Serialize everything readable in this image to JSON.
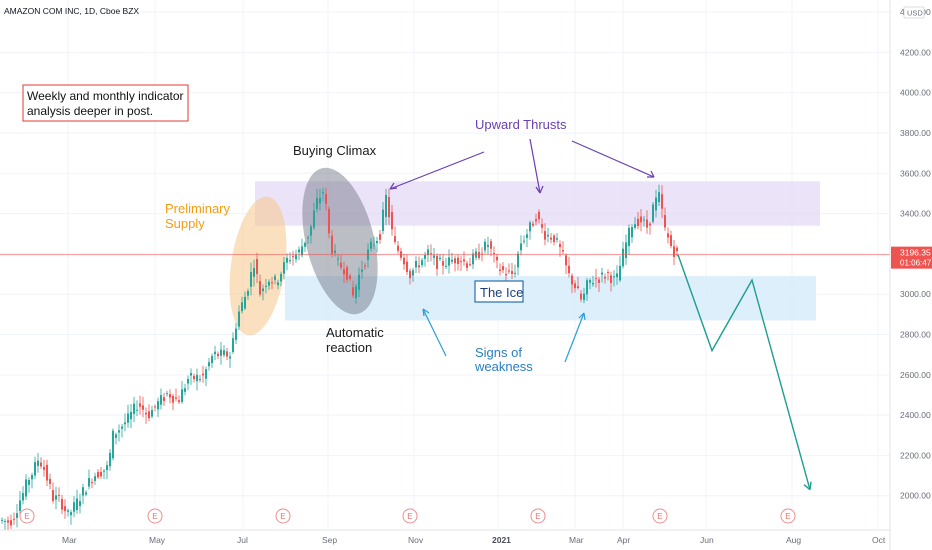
{
  "header": {
    "symbol": "AMAZON COM INC, 1D, Cboe BZX"
  },
  "currency": "USD",
  "price_label": {
    "price": "3196.35",
    "countdown": "01:06:47"
  },
  "note_box": {
    "line1": "Weekly and monthly indicator",
    "line2": "analysis deeper in post."
  },
  "annotations": {
    "buying_climax": "Buying Climax",
    "upward_thrusts": "Upward Thrusts",
    "preliminary_supply_1": "Preliminary",
    "preliminary_supply_2": "Supply",
    "automatic_reaction_1": "Automatic",
    "automatic_reaction_2": "reaction",
    "the_ice": "The Ice",
    "signs_of_weakness_1": "Signs of",
    "signs_of_weakness_2": "weakness"
  },
  "event_marker": "E",
  "colors": {
    "up": "#26a69a",
    "down": "#ef5350",
    "purple": "#6a3fb5",
    "blue": "#2a7fc0",
    "orange": "#f39c12",
    "projection": "#1e9e8e",
    "price_line": "#ef5350"
  },
  "chart_data": {
    "type": "candlestick",
    "title": "AMAZON COM INC, 1D, Cboe BZX",
    "y_axis": {
      "ticks": [
        2000,
        2200,
        2400,
        2600,
        2800,
        3000,
        3200,
        3400,
        3600,
        3800,
        4000,
        4200,
        4400
      ],
      "min": 1830,
      "max": 4440
    },
    "x_axis": {
      "labels": [
        "Mar",
        "May",
        "Jul",
        "Sep",
        "Nov",
        "2021",
        "Mar",
        "Apr",
        "Jun",
        "Aug",
        "Oct"
      ]
    },
    "last_price": 3196.35,
    "zones": [
      {
        "name": "Upward Thrusts zone",
        "from": 3340,
        "to": 3560
      },
      {
        "name": "The Ice zone",
        "from": 2870,
        "to": 3090
      }
    ],
    "trend_anchors": [
      [
        0,
        1880
      ],
      [
        12,
        1870
      ],
      [
        18,
        1920
      ],
      [
        20,
        1960
      ],
      [
        25,
        2010
      ],
      [
        30,
        2080
      ],
      [
        35,
        2120
      ],
      [
        40,
        2180
      ],
      [
        45,
        2150
      ],
      [
        55,
        1990
      ],
      [
        62,
        1980
      ],
      [
        70,
        1900
      ],
      [
        78,
        1960
      ],
      [
        85,
        2020
      ],
      [
        95,
        2100
      ],
      [
        110,
        2140
      ],
      [
        115,
        2300
      ],
      [
        130,
        2380
      ],
      [
        140,
        2460
      ],
      [
        150,
        2400
      ],
      [
        160,
        2460
      ],
      [
        170,
        2510
      ],
      [
        180,
        2470
      ],
      [
        190,
        2580
      ],
      [
        205,
        2590
      ],
      [
        215,
        2700
      ],
      [
        232,
        2700
      ],
      [
        240,
        2900
      ],
      [
        248,
        3000
      ],
      [
        256,
        3160
      ],
      [
        262,
        3010
      ],
      [
        270,
        3080
      ],
      [
        278,
        3060
      ],
      [
        290,
        3180
      ],
      [
        300,
        3200
      ],
      [
        305,
        3250
      ],
      [
        312,
        3310
      ],
      [
        318,
        3450
      ],
      [
        326,
        3520
      ],
      [
        332,
        3250
      ],
      [
        340,
        3150
      ],
      [
        348,
        3120
      ],
      [
        355,
        2990
      ],
      [
        362,
        3110
      ],
      [
        372,
        3230
      ],
      [
        382,
        3300
      ],
      [
        388,
        3480
      ],
      [
        396,
        3250
      ],
      [
        405,
        3180
      ],
      [
        412,
        3100
      ],
      [
        420,
        3150
      ],
      [
        430,
        3200
      ],
      [
        440,
        3150
      ],
      [
        450,
        3160
      ],
      [
        460,
        3180
      ],
      [
        470,
        3150
      ],
      [
        480,
        3200
      ],
      [
        490,
        3250
      ],
      [
        500,
        3130
      ],
      [
        510,
        3100
      ],
      [
        516,
        3100
      ],
      [
        522,
        3250
      ],
      [
        530,
        3310
      ],
      [
        538,
        3390
      ],
      [
        546,
        3300
      ],
      [
        556,
        3280
      ],
      [
        564,
        3200
      ],
      [
        570,
        3100
      ],
      [
        578,
        3030
      ],
      [
        584,
        2960
      ],
      [
        590,
        3060
      ],
      [
        600,
        3080
      ],
      [
        610,
        3100
      ],
      [
        618,
        3060
      ],
      [
        626,
        3220
      ],
      [
        634,
        3350
      ],
      [
        642,
        3370
      ],
      [
        650,
        3330
      ],
      [
        656,
        3450
      ],
      [
        662,
        3490
      ],
      [
        666,
        3330
      ],
      [
        672,
        3250
      ],
      [
        678,
        3196
      ]
    ],
    "projection": [
      [
        678,
        3196
      ],
      [
        712,
        2720
      ],
      [
        752,
        3070
      ],
      [
        810,
        2030
      ]
    ],
    "earnings_markers_x": [
      27,
      155,
      283,
      410,
      538,
      660,
      788
    ]
  }
}
